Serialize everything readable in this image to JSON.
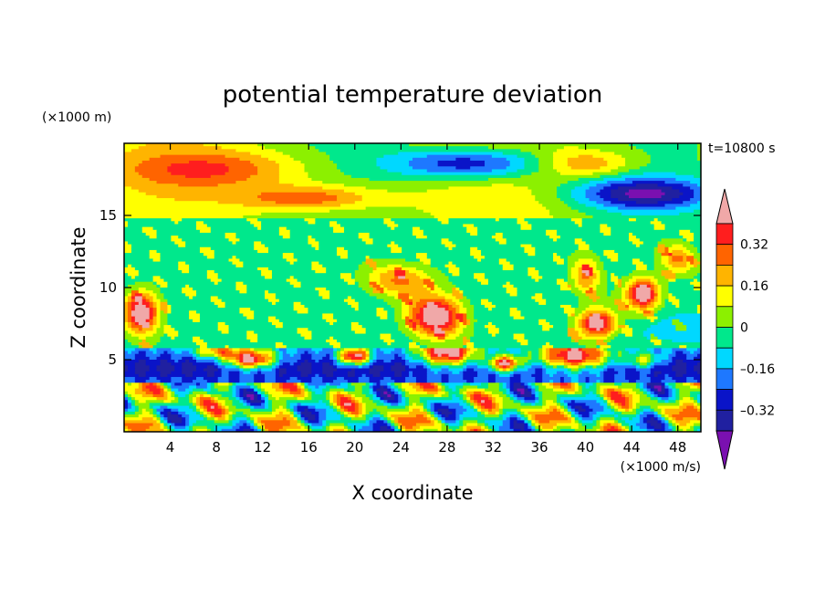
{
  "chart_data": {
    "type": "heatmap",
    "title": "potential temperature deviation",
    "xlabel": "X coordinate",
    "ylabel": "Z coordinate",
    "x_unit": "(×1000 m/s)",
    "y_unit": "(×1000 m)",
    "time_label": "t=10800 s",
    "xlim": [
      0,
      50
    ],
    "ylim": [
      0,
      20
    ],
    "x_ticks": [
      4,
      8,
      12,
      16,
      20,
      24,
      28,
      32,
      36,
      40,
      44,
      48
    ],
    "y_ticks": [
      5,
      10,
      15
    ],
    "colorbar": {
      "levels": [
        -0.48,
        -0.4,
        -0.32,
        -0.24,
        -0.16,
        -0.08,
        0,
        0.08,
        0.16,
        0.24,
        0.32,
        0.4
      ],
      "tick_labels": [
        "0.32",
        "0.16",
        "0",
        "–0.16",
        "–0.32"
      ],
      "tick_values": [
        0.32,
        0.16,
        0,
        -0.16,
        -0.32
      ],
      "colors": [
        "#7a10b0",
        "#2020a0",
        "#0a14c8",
        "#1e78ff",
        "#00d8ff",
        "#00e88c",
        "#8cf000",
        "#ffff00",
        "#ffb400",
        "#ff6400",
        "#ff1e1e",
        "#f0a8a8"
      ]
    }
  }
}
